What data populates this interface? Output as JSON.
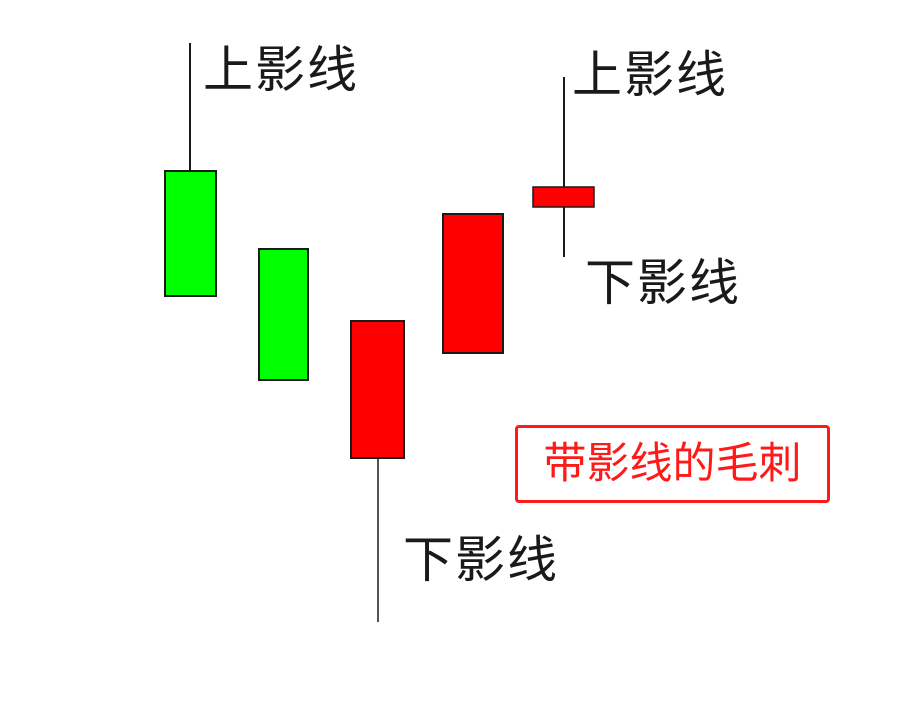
{
  "labels": {
    "upper_shadow_left": "上影线",
    "upper_shadow_right": "上影线",
    "lower_shadow_right": "下影线",
    "lower_shadow_bottom": "下影线"
  },
  "note": "带影线的毛刺",
  "colors": {
    "bearish": "#00ff00",
    "bullish": "#ff0000",
    "outline": "#1a1a1a",
    "note": "#ff1a1a"
  },
  "candles": [
    {
      "color": "green",
      "has_upper_shadow": true,
      "has_lower_shadow": false
    },
    {
      "color": "green",
      "has_upper_shadow": false,
      "has_lower_shadow": false
    },
    {
      "color": "red",
      "has_upper_shadow": false,
      "has_lower_shadow": true
    },
    {
      "color": "red",
      "has_upper_shadow": false,
      "has_lower_shadow": false
    },
    {
      "color": "red",
      "has_upper_shadow": true,
      "has_lower_shadow": true
    }
  ]
}
